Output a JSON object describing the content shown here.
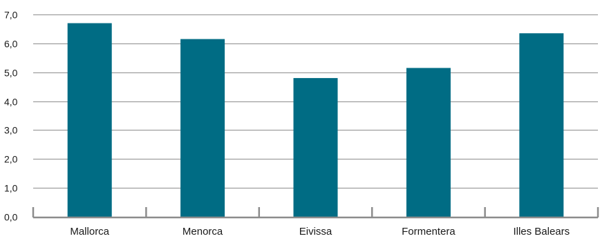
{
  "chart_data": {
    "type": "bar",
    "categories": [
      "Mallorca",
      "Menorca",
      "Eivissa",
      "Formentera",
      "Illes Balears"
    ],
    "values": [
      6.7,
      6.15,
      4.8,
      5.15,
      6.35
    ],
    "y_ticks": [
      "0,0",
      "1,0",
      "2,0",
      "3,0",
      "4,0",
      "5,0",
      "6,0",
      "7,0"
    ],
    "ylim": [
      0,
      7
    ],
    "grid": true,
    "title": "",
    "xlabel": "",
    "ylabel": ""
  },
  "colors": {
    "bar": "#006c84",
    "grid": "#8c8c8c",
    "axis": "#8c8c8c",
    "text": "#1a1a1a"
  }
}
